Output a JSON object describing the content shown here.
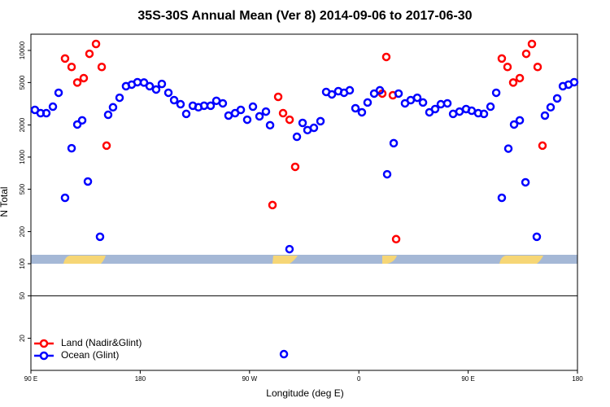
{
  "chart_data": {
    "type": "scatter",
    "title": "35S-30S Annual Mean (Ver 8)   2014-09-06 to 2017-06-30",
    "x_label": "Longitude (deg E)",
    "y_label": "N Total",
    "log_y": true,
    "xlim": [
      90,
      540
    ],
    "ylim": [
      10,
      14200
    ],
    "xticks": [
      {
        "value": 90,
        "label": "90 E"
      },
      180,
      {
        "value": 270,
        "label": "90 W"
      },
      {
        "value": 360,
        "label": "0"
      },
      {
        "value": 450,
        "label": "90 E"
      },
      180
    ],
    "yticks": [
      20,
      50,
      100,
      200,
      500,
      1000,
      2000,
      5000,
      10000
    ],
    "hline": 50,
    "legend_position": "lower left",
    "series": [
      {
        "name": "Land (Nadir&Glint)",
        "color": "#ff0000",
        "x": [
          118.1,
          123.5,
          128.2,
          133.5,
          138.2,
          143.6,
          148.3,
          152.3,
          288.9,
          293.6,
          297.6,
          303,
          307.6,
          379.3,
          382.6,
          388,
          390.7,
          477.7,
          482.4,
          487.1,
          492.5,
          497.8,
          502.5,
          507.2,
          511.2
        ],
        "values": [
          8400,
          7000,
          5000,
          5500,
          9300,
          11500,
          7000,
          1280,
          355,
          3670,
          2580,
          2240,
          810,
          3940,
          8690,
          3800,
          170,
          8400,
          7000,
          5000,
          5500,
          9300,
          11500,
          7000,
          1280
        ]
      },
      {
        "name": "Ocean (Glint)",
        "color": "#0000ff",
        "x": [
          93.3,
          98,
          102.7,
          108.1,
          112.8,
          118.1,
          123.5,
          128.2,
          132.2,
          136.9,
          146.9,
          153.6,
          157.6,
          163,
          168.3,
          173,
          177.7,
          183.1,
          187.8,
          193.1,
          197.8,
          203.2,
          207.9,
          213.2,
          217.9,
          223.3,
          227.9,
          232.6,
          238,
          242.7,
          248,
          252.7,
          258.1,
          262.8,
          268.1,
          272.8,
          278.2,
          283.5,
          286.9,
          298.3,
          302.9,
          309,
          313.7,
          317.7,
          323,
          328.4,
          333.1,
          337.8,
          343.1,
          347.8,
          352.5,
          357.2,
          362.5,
          367.2,
          372.6,
          377.3,
          383.3,
          388.7,
          392.7,
          398,
          402.7,
          408.1,
          412.8,
          418.1,
          422.8,
          427.5,
          432.9,
          437.6,
          442.9,
          448.3,
          452.9,
          458.3,
          463,
          468.4,
          473.1,
          477.7,
          483.1,
          487.8,
          492.5,
          497.2,
          506.5,
          513.2,
          517.9,
          523.3,
          528,
          532.6,
          537.3
        ],
        "values": [
          2770,
          2580,
          2580,
          2970,
          4010,
          415,
          1210,
          2020,
          2210,
          590,
          179,
          2490,
          2930,
          3600,
          4620,
          4780,
          5040,
          5000,
          4620,
          4300,
          4850,
          4010,
          3420,
          3130,
          2540,
          3030,
          2930,
          3030,
          3030,
          3370,
          3190,
          2450,
          2580,
          2770,
          2240,
          2970,
          2410,
          2670,
          1990,
          14.2,
          137,
          1550,
          2090,
          1790,
          1880,
          2170,
          4080,
          3870,
          4150,
          4010,
          4230,
          2870,
          2630,
          3250,
          3940,
          4230,
          690,
          1350,
          3940,
          3190,
          3420,
          3600,
          3250,
          2630,
          2820,
          3130,
          3190,
          2540,
          2670,
          2820,
          2720,
          2580,
          2540,
          2970,
          4010,
          415,
          1200,
          2020,
          2210,
          580,
          179,
          2450,
          2930,
          3550,
          4620,
          4780,
          5040
        ]
      }
    ]
  }
}
